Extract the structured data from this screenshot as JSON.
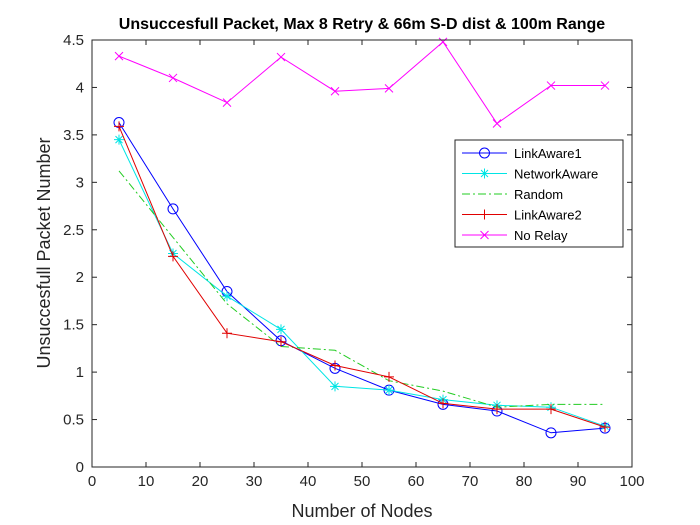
{
  "chart_data": {
    "type": "line",
    "title": "Unsuccesfull Packet, Max 8 Retry & 66m S-D dist & 100m Range",
    "xlabel": "Number of Nodes",
    "ylabel": "Unsuccesfull Packet Number",
    "xlim": [
      0,
      100
    ],
    "ylim": [
      0,
      4.5
    ],
    "xticks": [
      0,
      10,
      20,
      30,
      40,
      50,
      60,
      70,
      80,
      90,
      100
    ],
    "yticks": [
      0,
      0.5,
      1,
      1.5,
      2,
      2.5,
      3,
      3.5,
      4,
      4.5
    ],
    "x": [
      5,
      15,
      25,
      35,
      45,
      55,
      65,
      75,
      85,
      95
    ],
    "grid": false,
    "legend_position": "right",
    "series": [
      {
        "name": "LinkAware1",
        "color": "#0000ff",
        "marker": "circle",
        "dash": "solid",
        "values": [
          3.63,
          2.72,
          1.85,
          1.33,
          1.04,
          0.81,
          0.66,
          0.59,
          0.36,
          0.41
        ]
      },
      {
        "name": "NetworkAware",
        "color": "#00e5e5",
        "marker": "asterisk",
        "dash": "solid",
        "values": [
          3.45,
          2.25,
          1.8,
          1.45,
          0.85,
          0.81,
          0.71,
          0.65,
          0.63,
          0.43
        ]
      },
      {
        "name": "Random",
        "color": "#22cc22",
        "marker": "none",
        "dash": "dashdot",
        "values": [
          3.12,
          2.42,
          1.72,
          1.27,
          1.23,
          0.91,
          0.8,
          0.63,
          0.66,
          0.66
        ]
      },
      {
        "name": "LinkAware2",
        "color": "#e00000",
        "marker": "plus",
        "dash": "solid",
        "values": [
          3.59,
          2.22,
          1.41,
          1.32,
          1.07,
          0.95,
          0.67,
          0.61,
          0.61,
          0.42
        ]
      },
      {
        "name": "No Relay",
        "color": "#ff00ff",
        "marker": "x",
        "dash": "solid",
        "values": [
          4.33,
          4.1,
          3.84,
          4.32,
          3.96,
          3.99,
          4.48,
          3.62,
          4.02,
          4.02
        ]
      }
    ]
  }
}
